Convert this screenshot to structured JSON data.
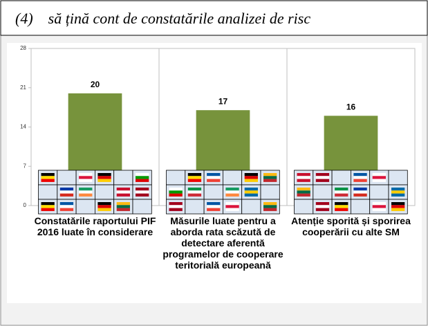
{
  "chart_data": {
    "type": "bar",
    "title": "(4)    să țină cont de constatările analizei de risc",
    "categories": [
      "Constatările raportului PIF 2016 luate în considerare",
      "Măsurile luate pentru a aborda rata scăzută de detectare aferentă programelor de cooperare teritorială europeană",
      "Atenție sporită și sporirea cooperării cu alte SM"
    ],
    "values": [
      20,
      17,
      16
    ],
    "color": "#77933c",
    "ylim": [
      0,
      28
    ],
    "yticks": [
      0,
      7,
      14,
      21,
      28
    ]
  }
}
